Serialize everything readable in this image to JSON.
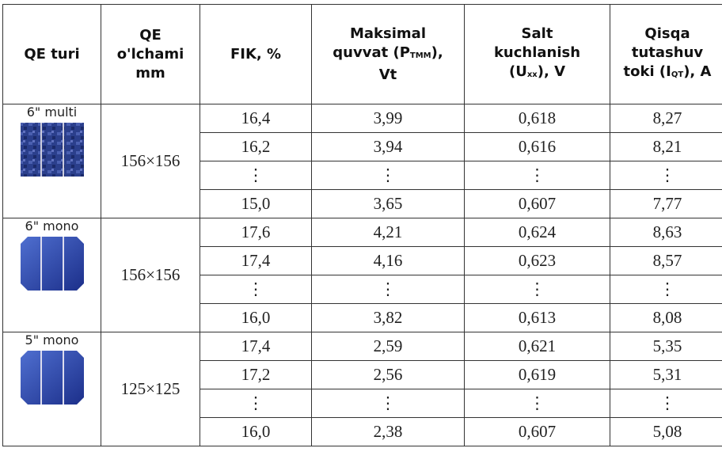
{
  "header": [
    [
      "QE turi"
    ],
    [
      "QE",
      "o'lchami",
      "mm"
    ],
    [
      "FIK,  %"
    ],
    [
      "Maksimal",
      {
        "pre": "quvvat (P",
        "sub": "TMM",
        "post": "),"
      },
      "Vt"
    ],
    [
      "Salt",
      "kuchlanish",
      {
        "pre": "(U",
        "sub": "xx",
        "post": "), V"
      }
    ],
    [
      "Qisqa",
      "tutashuv",
      {
        "pre": "toki (I",
        "sub": "QT",
        "post": "), A"
      }
    ]
  ],
  "groups": [
    {
      "label": "6\" multi",
      "size": "156×156",
      "icon": "multi",
      "rows": [
        [
          "16,4",
          "3,99",
          "0,618",
          "8,27"
        ],
        [
          "16,2",
          "3,94",
          "0,616",
          "8,21"
        ],
        [
          "⋮",
          "⋮",
          "⋮",
          "⋮"
        ],
        [
          "15,0",
          "3,65",
          "0,607",
          "7,77"
        ]
      ]
    },
    {
      "label": "6\" mono",
      "size": "156×156",
      "icon": "mono",
      "rows": [
        [
          "17,6",
          "4,21",
          "0,624",
          "8,63"
        ],
        [
          "17,4",
          "4,16",
          "0,623",
          "8,57"
        ],
        [
          "⋮",
          "⋮",
          "⋮",
          "⋮"
        ],
        [
          "16,0",
          "3,82",
          "0,613",
          "8,08"
        ]
      ]
    },
    {
      "label": "5\" mono",
      "size": "125×125",
      "icon": "mono",
      "rows": [
        [
          "17,4",
          "2,59",
          "0,621",
          "5,35"
        ],
        [
          "17,2",
          "2,56",
          "0,619",
          "5,31"
        ],
        [
          "⋮",
          "⋮",
          "⋮",
          "⋮"
        ],
        [
          "16,0",
          "2,38",
          "0,607",
          "5,08"
        ]
      ]
    }
  ]
}
